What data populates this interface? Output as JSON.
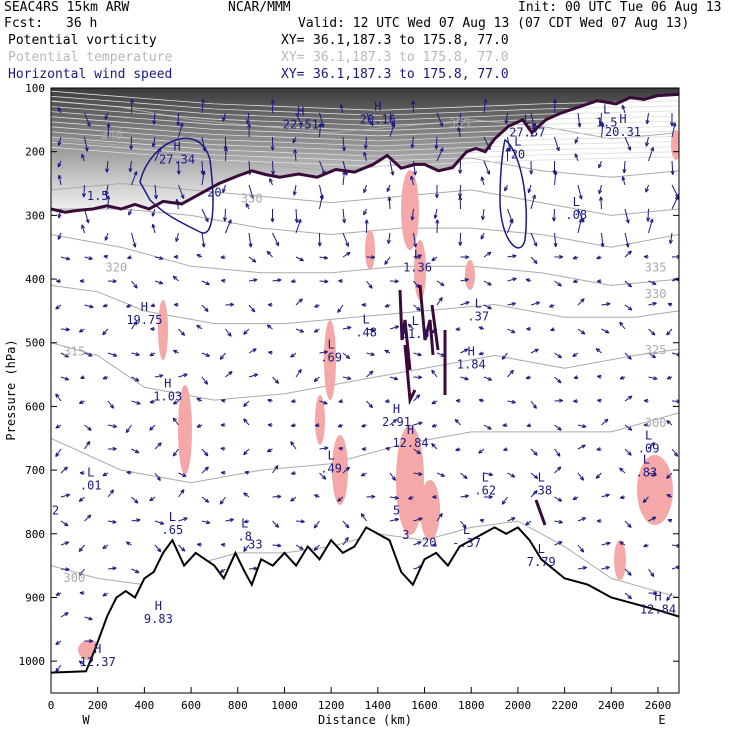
{
  "header": {
    "model": "SEAC4RS 15km ARW",
    "org": "NCAR/MMM",
    "init": "Init: 00 UTC Tue 06 Aug 13",
    "fcst_label": "Fcst:",
    "fcst_value": "36 h",
    "valid": "Valid: 12 UTC Wed 07 Aug 13 (07 CDT Wed 07 Aug 13)"
  },
  "fields": [
    {
      "name": "Potential vorticity",
      "xy_label": "XY=",
      "xy": "36.1,187.3 to 175.8, 77.0",
      "color": "#000000"
    },
    {
      "name": "Potential temperature",
      "xy_label": "XY=",
      "xy": "36.1,187.3 to 175.8, 77.0",
      "color": "#b8b8b8"
    },
    {
      "name": "Horizontal wind speed",
      "xy_label": "XY=",
      "xy": "36.1,187.3 to 175.8, 77.0",
      "color": "#1a1a80"
    }
  ],
  "chart_data": {
    "type": "cross-section",
    "xlabel": "Distance (km)",
    "ylabel": "Pressure (hPa)",
    "xlim": [
      0,
      2690
    ],
    "ylim": [
      1050,
      100
    ],
    "x_ticks": [
      0,
      200,
      400,
      600,
      800,
      1000,
      1200,
      1400,
      1600,
      1800,
      2000,
      2200,
      2400,
      2600
    ],
    "y_ticks": [
      100,
      200,
      300,
      400,
      500,
      600,
      700,
      800,
      900,
      1000
    ],
    "end_labels": {
      "left": "W",
      "right": "E"
    },
    "terrain_pressure": [
      [
        0,
        1018
      ],
      [
        150,
        1016
      ],
      [
        190,
        980
      ],
      [
        240,
        930
      ],
      [
        280,
        900
      ],
      [
        320,
        890
      ],
      [
        360,
        900
      ],
      [
        400,
        870
      ],
      [
        440,
        860
      ],
      [
        480,
        830
      ],
      [
        520,
        810
      ],
      [
        570,
        850
      ],
      [
        620,
        830
      ],
      [
        660,
        840
      ],
      [
        700,
        850
      ],
      [
        740,
        870
      ],
      [
        790,
        830
      ],
      [
        830,
        860
      ],
      [
        860,
        880
      ],
      [
        900,
        840
      ],
      [
        950,
        850
      ],
      [
        1000,
        830
      ],
      [
        1050,
        850
      ],
      [
        1100,
        820
      ],
      [
        1150,
        840
      ],
      [
        1200,
        810
      ],
      [
        1250,
        830
      ],
      [
        1300,
        820
      ],
      [
        1350,
        790
      ],
      [
        1400,
        800
      ],
      [
        1450,
        810
      ],
      [
        1500,
        860
      ],
      [
        1550,
        880
      ],
      [
        1600,
        840
      ],
      [
        1650,
        830
      ],
      [
        1700,
        850
      ],
      [
        1750,
        820
      ],
      [
        1800,
        810
      ],
      [
        1850,
        800
      ],
      [
        1900,
        790
      ],
      [
        1950,
        800
      ],
      [
        2000,
        790
      ],
      [
        2050,
        810
      ],
      [
        2100,
        840
      ],
      [
        2200,
        870
      ],
      [
        2300,
        880
      ],
      [
        2400,
        900
      ],
      [
        2500,
        910
      ],
      [
        2600,
        920
      ],
      [
        2690,
        930
      ]
    ],
    "theta_contours": [
      {
        "label": "300",
        "points": [
          [
            0,
            850
          ],
          [
            200,
            870
          ],
          [
            400,
            880
          ],
          [
            600,
            850
          ],
          [
            800,
            830
          ],
          [
            1000,
            830
          ],
          [
            1200,
            820
          ],
          [
            1400,
            800
          ],
          [
            1600,
            810
          ],
          [
            1800,
            790
          ],
          [
            2000,
            780
          ],
          [
            2200,
            820
          ],
          [
            2400,
            870
          ],
          [
            2690,
            900
          ]
        ]
      },
      {
        "label": "310",
        "points": [
          [
            0,
            650
          ],
          [
            300,
            700
          ],
          [
            600,
            720
          ],
          [
            900,
            700
          ],
          [
            1200,
            690
          ],
          [
            1500,
            660
          ],
          [
            1800,
            640
          ],
          [
            2100,
            640
          ],
          [
            2400,
            640
          ],
          [
            2690,
            610
          ]
        ]
      },
      {
        "label": "315",
        "points": [
          [
            0,
            500
          ],
          [
            200,
            520
          ],
          [
            400,
            570
          ],
          [
            700,
            590
          ],
          [
            1000,
            580
          ],
          [
            1300,
            560
          ],
          [
            1600,
            540
          ],
          [
            1900,
            520
          ],
          [
            2200,
            540
          ],
          [
            2500,
            520
          ],
          [
            2690,
            510
          ]
        ]
      },
      {
        "label": "320",
        "points": [
          [
            0,
            410
          ],
          [
            200,
            420
          ],
          [
            400,
            450
          ],
          [
            700,
            470
          ],
          [
            1000,
            470
          ],
          [
            1300,
            460
          ],
          [
            1600,
            450
          ],
          [
            1900,
            440
          ],
          [
            2200,
            460
          ],
          [
            2500,
            460
          ],
          [
            2690,
            450
          ]
        ]
      },
      {
        "label": "325",
        "points": [
          [
            0,
            330
          ],
          [
            300,
            350
          ],
          [
            600,
            380
          ],
          [
            900,
            390
          ],
          [
            1200,
            390
          ],
          [
            1500,
            380
          ],
          [
            1800,
            380
          ],
          [
            2100,
            390
          ],
          [
            2400,
            410
          ],
          [
            2690,
            400
          ]
        ]
      },
      {
        "label": "330",
        "points": [
          [
            0,
            290
          ],
          [
            300,
            290
          ],
          [
            600,
            300
          ],
          [
            900,
            320
          ],
          [
            1200,
            330
          ],
          [
            1500,
            320
          ],
          [
            1800,
            320
          ],
          [
            2100,
            330
          ],
          [
            2400,
            350
          ],
          [
            2690,
            330
          ]
        ]
      },
      {
        "label": "335",
        "points": [
          [
            0,
            260
          ],
          [
            300,
            250
          ],
          [
            600,
            260
          ],
          [
            900,
            270
          ],
          [
            1200,
            280
          ],
          [
            1500,
            270
          ],
          [
            1800,
            260
          ],
          [
            2100,
            280
          ],
          [
            2400,
            300
          ],
          [
            2690,
            290
          ]
        ]
      },
      {
        "label": "340",
        "points": [
          [
            0,
            180
          ],
          [
            300,
            190
          ],
          [
            600,
            200
          ],
          [
            900,
            220
          ],
          [
            1200,
            230
          ],
          [
            1500,
            220
          ],
          [
            1800,
            210
          ],
          [
            2100,
            230
          ],
          [
            2400,
            240
          ],
          [
            2690,
            230
          ]
        ]
      },
      {
        "label": "355",
        "points": [
          [
            0,
            120
          ],
          [
            300,
            130
          ],
          [
            600,
            150
          ],
          [
            900,
            160
          ],
          [
            1200,
            170
          ],
          [
            1500,
            160
          ],
          [
            1800,
            150
          ],
          [
            2100,
            160
          ],
          [
            2400,
            180
          ],
          [
            2690,
            170
          ]
        ]
      }
    ],
    "pv_2pvu": [
      [
        0,
        290
      ],
      [
        60,
        295
      ],
      [
        120,
        292
      ],
      [
        180,
        290
      ],
      [
        240,
        285
      ],
      [
        300,
        290
      ],
      [
        360,
        283
      ],
      [
        420,
        290
      ],
      [
        480,
        278
      ],
      [
        560,
        282
      ],
      [
        640,
        266
      ],
      [
        720,
        250
      ],
      [
        800,
        238
      ],
      [
        860,
        230
      ],
      [
        920,
        236
      ],
      [
        980,
        240
      ],
      [
        1060,
        235
      ],
      [
        1140,
        240
      ],
      [
        1220,
        228
      ],
      [
        1300,
        232
      ],
      [
        1380,
        220
      ],
      [
        1440,
        206
      ],
      [
        1500,
        226
      ],
      [
        1560,
        220
      ],
      [
        1600,
        220
      ],
      [
        1660,
        230
      ],
      [
        1720,
        225
      ],
      [
        1780,
        200
      ],
      [
        1820,
        195
      ],
      [
        1860,
        200
      ],
      [
        1900,
        180
      ],
      [
        1960,
        160
      ],
      [
        2020,
        150
      ],
      [
        2060,
        170
      ],
      [
        2120,
        150
      ],
      [
        2180,
        140
      ],
      [
        2260,
        130
      ],
      [
        2340,
        120
      ],
      [
        2420,
        125
      ],
      [
        2480,
        115
      ],
      [
        2540,
        118
      ],
      [
        2600,
        112
      ],
      [
        2690,
        110
      ]
    ],
    "wind_extrema": [
      {
        "type": "H",
        "value": "27.34",
        "x": 540,
        "p": 198
      },
      {
        "type": "H",
        "value": "22.51",
        "x": 1070,
        "p": 143
      },
      {
        "type": "H",
        "value": "20.16",
        "x": 1400,
        "p": 135
      },
      {
        "type": "L",
        "value": "20",
        "x": 2000,
        "p": 190
      },
      {
        "type": "L",
        "value": "27.37",
        "x": 2040,
        "p": 156
      },
      {
        "type": "L",
        "value": "1.5",
        "x": 2380,
        "p": 140
      },
      {
        "type": "H",
        "value": "20.31",
        "x": 2450,
        "p": 155
      },
      {
        "type": "L",
        "value": ".08",
        "x": 2250,
        "p": 285
      },
      {
        "type": "H",
        "value": "19.75",
        "x": 400,
        "p": 450
      },
      {
        "type": "L",
        "value": "1.36",
        "x": 1570,
        "p": 368
      },
      {
        "type": "L",
        "value": ".37",
        "x": 1830,
        "p": 445
      },
      {
        "type": "L",
        "value": ".48",
        "x": 1350,
        "p": 470
      },
      {
        "type": "L",
        "value": "51.5",
        "x": 1560,
        "p": 472
      },
      {
        "type": "L",
        "value": ".69",
        "x": 1200,
        "p": 509
      },
      {
        "type": "H",
        "value": "1.84",
        "x": 1800,
        "p": 520
      },
      {
        "type": "H",
        "value": "1.03",
        "x": 500,
        "p": 570
      },
      {
        "type": "H",
        "value": "2.91",
        "x": 1480,
        "p": 610
      },
      {
        "type": "H",
        "value": "12.84",
        "x": 1540,
        "p": 643
      },
      {
        "type": "L",
        "value": ".09",
        "x": 2560,
        "p": 652
      },
      {
        "type": "L",
        "value": ".49",
        "x": 1200,
        "p": 683
      },
      {
        "type": "L",
        "value": ".83",
        "x": 2550,
        "p": 690
      },
      {
        "type": "L",
        "value": ".01",
        "x": 170,
        "p": 710
      },
      {
        "type": "L",
        "value": ".62",
        "x": 1860,
        "p": 718
      },
      {
        "type": "L",
        "value": ".38",
        "x": 2100,
        "p": 718
      },
      {
        "type": "L",
        "value": ".65",
        "x": 520,
        "p": 780
      },
      {
        "type": "L",
        "value": ".8",
        "x": 830,
        "p": 790
      },
      {
        "type": "L",
        "value": "-.37",
        "x": 1780,
        "p": 800
      },
      {
        "type": "L",
        "value": "7.79",
        "x": 2100,
        "p": 830
      },
      {
        "type": "H",
        "value": "9.83",
        "x": 460,
        "p": 920
      },
      {
        "type": "H",
        "value": "12.84",
        "x": 2600,
        "p": 905
      },
      {
        "type": "H",
        "value": "12.37",
        "x": 200,
        "p": 987
      }
    ],
    "theta_labels": [
      {
        "text": "340",
        "x": 260,
        "p": 180
      },
      {
        "text": "355",
        "x": 1750,
        "p": 162
      },
      {
        "text": "330",
        "x": 860,
        "p": 280
      },
      {
        "text": "335",
        "x": 2590,
        "p": 388
      },
      {
        "text": "330",
        "x": 2590,
        "p": 430
      },
      {
        "text": "320",
        "x": 280,
        "p": 388
      },
      {
        "text": "325",
        "x": 2590,
        "p": 518
      },
      {
        "text": "315",
        "x": 100,
        "p": 520
      },
      {
        "text": "300",
        "x": 2590,
        "p": 632
      },
      {
        "text": "300",
        "x": 100,
        "p": 876
      },
      {
        "text": "20",
        "x": 700,
        "p": 270
      },
      {
        "text": "1.5",
        "x": 200,
        "p": 276
      },
      {
        "text": "2",
        "x": 20,
        "p": 770
      },
      {
        "text": "5",
        "x": 1480,
        "p": 770
      },
      {
        "text": "3",
        "x": 1520,
        "p": 808
      },
      {
        "text": "20",
        "x": 1620,
        "p": 820
      },
      {
        "text": ".33",
        "x": 860,
        "p": 823
      }
    ]
  }
}
